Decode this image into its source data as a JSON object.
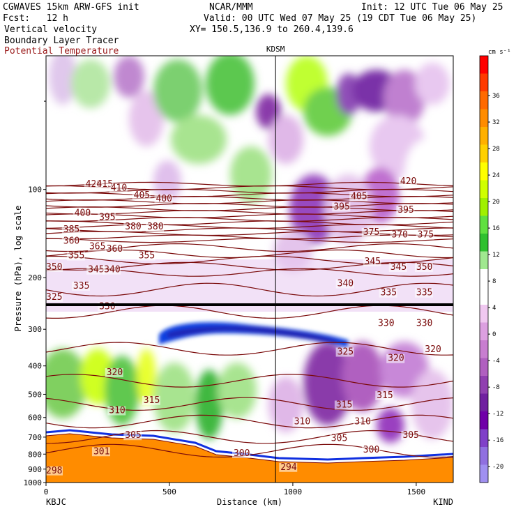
{
  "header": {
    "model": "CGWAVES 15km ARW-GFS init",
    "org": "NCAR/MMM",
    "init": "Init: 12 UTC Tue 06 May 25",
    "fcst": "Fcst:   12 h",
    "valid": "Valid: 00 UTC Wed 07 May 25 (19 CDT Tue 06 May 25)",
    "field1": "Vertical velocity",
    "xy": "XY= 150.5,136.9 to 260.4,139.6",
    "field2": "Boundary Layer Tracer",
    "field3": "Potential Temperature"
  },
  "chart_data": {
    "type": "heatmap",
    "xlabel": "Distance (km)",
    "ylabel": "Pressure (hPa), log scale",
    "xlim": [
      0,
      1650
    ],
    "ylim": [
      1000,
      35
    ],
    "x_ticks": [
      0,
      500,
      1000,
      1500
    ],
    "y_ticks": [
      100,
      200,
      300,
      400,
      500,
      600,
      700,
      800,
      900,
      1000
    ],
    "x_endpoint_labels": {
      "left": "KBJC",
      "right": "KIND"
    },
    "station_marker": {
      "label": "KDSM",
      "x": 930
    },
    "colorbar": {
      "unit": "cm s⁻¹",
      "tick_labels": [
        "36",
        "32",
        "28",
        "24",
        "20",
        "16",
        "12",
        "8",
        "4",
        "0",
        "-4",
        "-8",
        "-12",
        "-16",
        "-20"
      ],
      "colors": [
        "#ff0000",
        "#ff3a00",
        "#ff6a00",
        "#ff8c00",
        "#ffb000",
        "#ffd000",
        "#ffff00",
        "#d0ff00",
        "#a0f000",
        "#60e040",
        "#30c030",
        "#a0e890",
        "#ffffff",
        "#ffffff",
        "#f0c8f0",
        "#dca0e0",
        "#c87ed0",
        "#b060c0",
        "#9040b0",
        "#7020a0",
        "#7000a8",
        "#8040c8",
        "#9070e0",
        "#a090f0"
      ]
    },
    "theta_labels": [
      {
        "v": "420",
        "x": 160,
        "p": 98
      },
      {
        "v": "415",
        "x": 205,
        "p": 98
      },
      {
        "v": "410",
        "x": 262,
        "p": 101
      },
      {
        "v": "405",
        "x": 355,
        "p": 107
      },
      {
        "v": "400",
        "x": 445,
        "p": 110
      },
      {
        "v": "405",
        "x": 1235,
        "p": 108
      },
      {
        "v": "420",
        "x": 1435,
        "p": 96
      },
      {
        "v": "400",
        "x": 115,
        "p": 123
      },
      {
        "v": "395",
        "x": 215,
        "p": 127
      },
      {
        "v": "380",
        "x": 320,
        "p": 137
      },
      {
        "v": "380",
        "x": 410,
        "p": 137
      },
      {
        "v": "395",
        "x": 1165,
        "p": 117
      },
      {
        "v": "395",
        "x": 1425,
        "p": 120
      },
      {
        "v": "385",
        "x": 70,
        "p": 140
      },
      {
        "v": "375",
        "x": 1285,
        "p": 143
      },
      {
        "v": "370",
        "x": 1400,
        "p": 146
      },
      {
        "v": "375",
        "x": 1505,
        "p": 146
      },
      {
        "v": "360",
        "x": 70,
        "p": 153
      },
      {
        "v": "365",
        "x": 175,
        "p": 160
      },
      {
        "v": "360",
        "x": 245,
        "p": 163
      },
      {
        "v": "355",
        "x": 90,
        "p": 172
      },
      {
        "v": "355",
        "x": 375,
        "p": 172
      },
      {
        "v": "350",
        "x": 1500,
        "p": 188
      },
      {
        "v": "345",
        "x": 1290,
        "p": 180
      },
      {
        "v": "345",
        "x": 1395,
        "p": 188
      },
      {
        "v": "345",
        "x": 170,
        "p": 192
      },
      {
        "v": "340",
        "x": 235,
        "p": 192
      },
      {
        "v": "350",
        "x": 0,
        "p": 188
      },
      {
        "v": "340",
        "x": 1180,
        "p": 214
      },
      {
        "v": "335",
        "x": 110,
        "p": 218
      },
      {
        "v": "335",
        "x": 1355,
        "p": 230
      },
      {
        "v": "335",
        "x": 1500,
        "p": 230
      },
      {
        "v": "325",
        "x": 0,
        "p": 238
      },
      {
        "v": "330",
        "x": 215,
        "p": 256
      },
      {
        "v": "330",
        "x": 1345,
        "p": 292
      },
      {
        "v": "330",
        "x": 1500,
        "p": 292
      },
      {
        "v": "325",
        "x": 1180,
        "p": 366
      },
      {
        "v": "320",
        "x": 1385,
        "p": 385
      },
      {
        "v": "320",
        "x": 1535,
        "p": 359
      },
      {
        "v": "320",
        "x": 245,
        "p": 430
      },
      {
        "v": "315",
        "x": 395,
        "p": 535
      },
      {
        "v": "315",
        "x": 1340,
        "p": 515
      },
      {
        "v": "315",
        "x": 1175,
        "p": 555
      },
      {
        "v": "310",
        "x": 255,
        "p": 580
      },
      {
        "v": "310",
        "x": 1005,
        "p": 633
      },
      {
        "v": "310",
        "x": 1250,
        "p": 633
      },
      {
        "v": "305",
        "x": 320,
        "p": 705
      },
      {
        "v": "305",
        "x": 1155,
        "p": 722
      },
      {
        "v": "305",
        "x": 1445,
        "p": 705
      },
      {
        "v": "301",
        "x": 192,
        "p": 800
      },
      {
        "v": "300",
        "x": 760,
        "p": 812
      },
      {
        "v": "300",
        "x": 1285,
        "p": 790
      },
      {
        "v": "298",
        "x": 0,
        "p": 930
      },
      {
        "v": "294",
        "x": 950,
        "p": 905
      }
    ]
  }
}
